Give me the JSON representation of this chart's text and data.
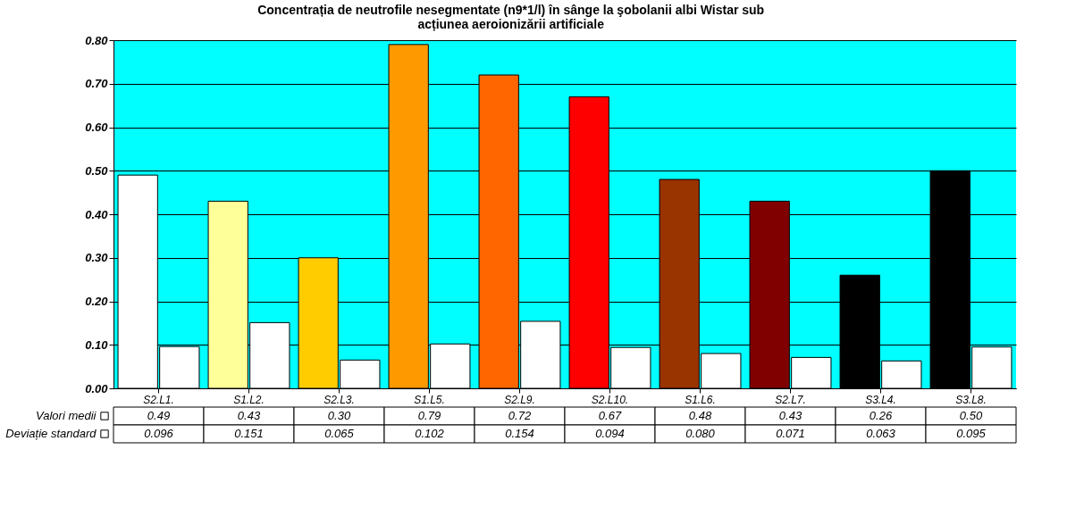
{
  "chart_data": {
    "type": "bar",
    "title": "Concentrația de neutrofile nesegmentate (n9*1/l) în sânge la şobolanii albi Wistar sub acțiunea aeroionizării artificiale",
    "categories": [
      "S2.L1.",
      "S1.L2.",
      "S2.L3.",
      "S1.L5.",
      "S2.L9.",
      "S2.L10.",
      "S1.L6.",
      "S2.L7.",
      "S3.L4.",
      "S3.L8."
    ],
    "series": [
      {
        "name": "Valori medii",
        "colors": [
          "#ffffff",
          "#ffff99",
          "#ffcc00",
          "#ff9900",
          "#ff6600",
          "#ff0000",
          "#993300",
          "#800000",
          "#000000",
          "#000000"
        ],
        "values": [
          0.49,
          0.43,
          0.3,
          0.79,
          0.72,
          0.67,
          0.48,
          0.43,
          0.26,
          0.5
        ],
        "value_labels": [
          "0.49",
          "0.43",
          "0.30",
          "0.79",
          "0.72",
          "0.67",
          "0.48",
          "0.43",
          "0.26",
          "0.50"
        ]
      },
      {
        "name": "Deviație standard",
        "color": "#ffffff",
        "values": [
          0.096,
          0.151,
          0.065,
          0.102,
          0.154,
          0.094,
          0.08,
          0.071,
          0.063,
          0.095
        ],
        "value_labels": [
          "0.096",
          "0.151",
          "0.065",
          "0.102",
          "0.154",
          "0.094",
          "0.080",
          "0.071",
          "0.063",
          "0.095"
        ]
      }
    ],
    "ylim": [
      0,
      0.8
    ],
    "yticks": [
      {
        "value": 0,
        "label": "0.00"
      },
      {
        "value": 0.1,
        "label": "0.10"
      },
      {
        "value": 0.2,
        "label": "0.20"
      },
      {
        "value": 0.3,
        "label": "0.30"
      },
      {
        "value": 0.4,
        "label": "0.40"
      },
      {
        "value": 0.5,
        "label": "0.50"
      },
      {
        "value": 0.6,
        "label": "0.60"
      },
      {
        "value": 0.7,
        "label": "0.70"
      },
      {
        "value": 0.8,
        "label": "0.80"
      }
    ],
    "grid": "y",
    "legend": "bottom left"
  }
}
